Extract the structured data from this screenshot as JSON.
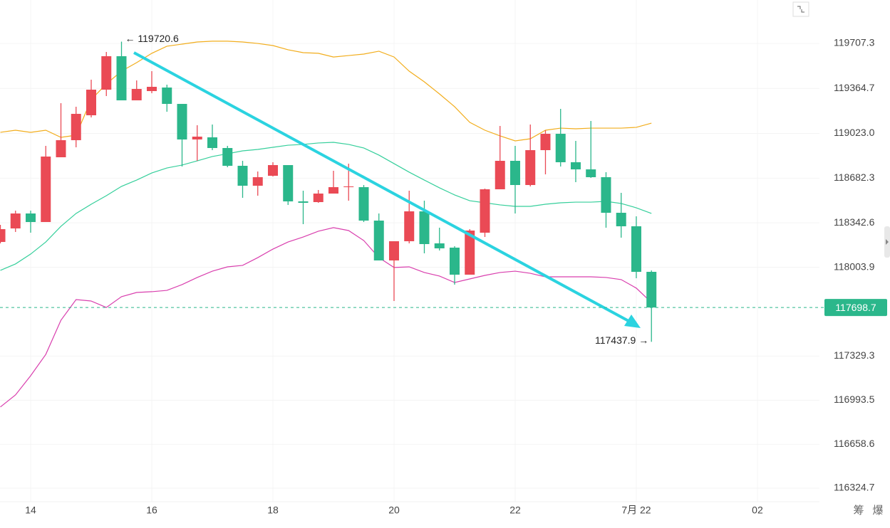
{
  "chart_data": {
    "type": "candlestick",
    "x": [
      13.5,
      13.75,
      14,
      14.25,
      14.5,
      14.75,
      15,
      15.25,
      15.5,
      15.75,
      16,
      16.25,
      16.5,
      16.75,
      17,
      17.25,
      17.5,
      17.75,
      18,
      18.25,
      18.5,
      18.75,
      19,
      19.25,
      19.5,
      19.75,
      20,
      20.25,
      20.5,
      20.75,
      21,
      21.25,
      21.5,
      21.75,
      22,
      22.25,
      22.5,
      22.75,
      23,
      23.25,
      23.5,
      23.75,
      24,
      24.25
    ],
    "open": [
      118197.3,
      118300.1,
      118413.8,
      118348.9,
      118841.3,
      118971.2,
      119160.7,
      119355.5,
      119609.9,
      119274.3,
      119344.7,
      119371.7,
      119247.2,
      118976.6,
      118992.9,
      118911.7,
      118776.4,
      118624.9,
      118700.6,
      118781.8,
      118505.8,
      118500.4,
      118565.3,
      118614.0,
      118614.0,
      118359.7,
      118056.6,
      118202.7,
      118430.0,
      118186.5,
      118154.0,
      117948.4,
      118267.7,
      118597.8,
      118814.3,
      118630.3,
      118895.5,
      119019.9,
      118803.5,
      118749.3,
      118689.8,
      118419.2,
      118316.4,
      117970.0
    ],
    "high": [
      118327.2,
      118435.5,
      118435.5,
      118927.9,
      119252.7,
      119225.6,
      119431.3,
      119642.3,
      119720.6,
      119425.8,
      119496.2,
      119393.4,
      119247.2,
      119084.9,
      119090.3,
      118927.9,
      118814.3,
      118733.1,
      118803.5,
      118781.8,
      118587.0,
      118592.4,
      118738.5,
      118792.6,
      118630.3,
      118413.8,
      118202.7,
      118587.0,
      118511.2,
      118305.6,
      118164.8,
      118294.7,
      118603.2,
      119079.5,
      118927.9,
      119090.3,
      119047.0,
      119209.4,
      118965.8,
      119117.4,
      118727.7,
      118570.7,
      118392.2,
      117980.8
    ],
    "low": [
      118186.5,
      118273.1,
      118267.7,
      118348.9,
      118841.3,
      118917.1,
      119144.4,
      119306.8,
      119274.3,
      119274.3,
      119328.4,
      119187.7,
      118771.0,
      118814.3,
      118895.5,
      118765.6,
      118532.9,
      118549.1,
      118695.2,
      118478.7,
      118332.6,
      118495.0,
      118565.3,
      118511.2,
      118348.9,
      118056.6,
      117748.1,
      118186.5,
      118110.7,
      118132.4,
      117872.6,
      117948.4,
      118235.2,
      118597.8,
      118413.8,
      118619.5,
      118711.5,
      118771.0,
      118651.9,
      118684.4,
      118305.6,
      118229.8,
      117921.3,
      117437.9
    ],
    "close": [
      118294.7,
      118413.8,
      118348.9,
      118846.8,
      118971.2,
      119171.5,
      119355.5,
      119609.9,
      119274.3,
      119360.9,
      119377.1,
      119247.2,
      118976.6,
      118998.3,
      118911.7,
      118776.4,
      118624.9,
      118689.8,
      118781.8,
      118505.8,
      118495.0,
      118565.3,
      118614.0,
      118619.5,
      118359.7,
      118056.6,
      118202.7,
      118430.0,
      118181.1,
      118148.6,
      117948.4,
      118283.9,
      118597.8,
      118814.3,
      118630.3,
      118895.5,
      119019.9,
      118803.5,
      118749.3,
      118689.8,
      118419.2,
      118316.4,
      117970.0,
      117698.7
    ],
    "up_color": "#ea4a55",
    "down_color": "#2bb78b",
    "bands": [
      {
        "color": "#f2ad1c",
        "values": [
          119031,
          119047,
          119031,
          119047,
          118993,
          119009,
          119280,
          119399,
          119496,
          119561,
          119632,
          119686,
          119702,
          119718,
          119724,
          119724,
          119718,
          119707,
          119691,
          119659,
          119637,
          119632,
          119604,
          119615,
          119626,
          119648,
          119604,
          119496,
          119415,
          119323,
          119226,
          119107,
          119047,
          119004,
          118966,
          118982,
          119047,
          119063,
          119058,
          119063,
          119063,
          119063,
          119069,
          119101
        ]
      },
      {
        "color": "#35cf9b",
        "values": [
          117981,
          118030,
          118105,
          118197,
          118316,
          118414,
          118484,
          118549,
          118620,
          118668,
          118722,
          118760,
          118782,
          118814,
          118847,
          118868,
          118890,
          118901,
          118917,
          118933,
          118939,
          118950,
          118955,
          118939,
          118912,
          118858,
          118793,
          118728,
          118668,
          118609,
          118555,
          118511,
          118495,
          118479,
          118468,
          118468,
          118484,
          118495,
          118500,
          118500,
          118506,
          118490,
          118457,
          118414
        ]
      },
      {
        "color": "#d93fae",
        "values": [
          116942,
          117034,
          117180,
          117342,
          117602,
          117759,
          117748,
          117699,
          117781,
          117813,
          117819,
          117829,
          117873,
          117927,
          117975,
          118008,
          118019,
          118078,
          118143,
          118197,
          118235,
          118279,
          118306,
          118284,
          118208,
          118078,
          118003,
          118008,
          117965,
          117938,
          117889,
          117916,
          117943,
          117965,
          117975,
          117959,
          117932,
          117932,
          117932,
          117932,
          117927,
          117911,
          117846,
          117737
        ]
      }
    ],
    "xlim": [
      13.494,
      27.024
    ],
    "xticks": [
      14,
      16,
      18,
      20,
      22,
      {
        "value": 24,
        "label": "7月 22"
      },
      {
        "value": 26,
        "label": "02"
      }
    ],
    "ylim": [
      116222,
      120037.4
    ],
    "yticks": [
      119707.3,
      119364.7,
      {
        "value": 119023,
        "label": "119023.0"
      },
      118682.3,
      118342.6,
      118003.9,
      117329.3,
      116993.5,
      116658.6,
      116324.7
    ],
    "grid": true,
    "last_price": 117698.7,
    "high_marker": {
      "x": 15.5,
      "value": 119720.6,
      "label": "← 119720.6"
    },
    "low_marker": {
      "x": 24.25,
      "value": 117437.9,
      "label": "117437.9 →"
    },
    "corner_labels": [
      "筹",
      "爆"
    ]
  }
}
